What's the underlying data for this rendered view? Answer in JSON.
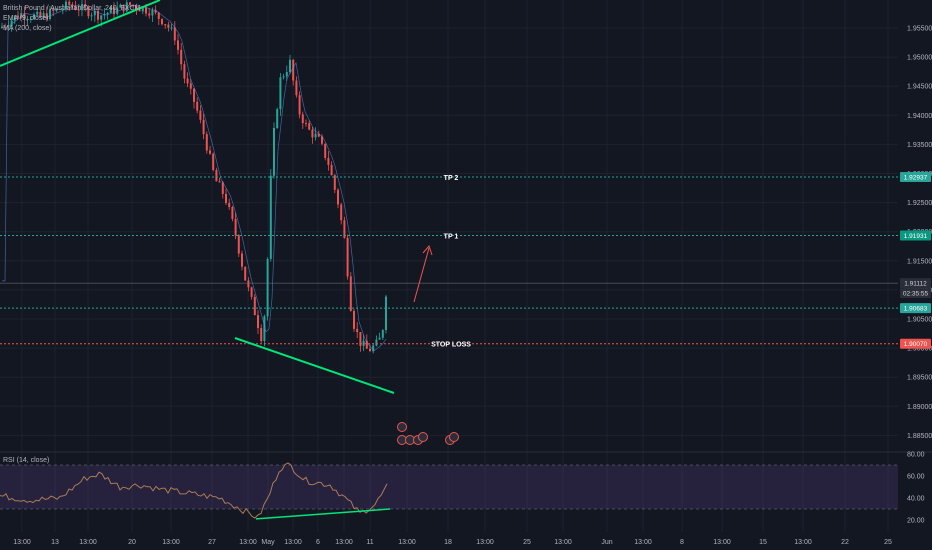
{
  "legend": {
    "symbol": "British Pound / Australian Dollar, 240, FXCM",
    "ema": "EMA (9, close)",
    "ma": "MA (200, close)"
  },
  "rsi_label": "RSI (14, close)",
  "annotations": {
    "tp2": "TP 2",
    "tp1": "TP 1",
    "stop_loss": "STOP LOSS"
  },
  "price_axis": {
    "ticks": [
      "1.95500",
      "1.95000",
      "1.94500",
      "1.94000",
      "1.93500",
      "1.93000",
      "1.92500",
      "1.92000",
      "1.91500",
      "1.91000",
      "1.90500",
      "1.90000",
      "1.89500",
      "1.89000",
      "1.88500"
    ],
    "current_price": "1.91112",
    "countdown": "02:35:55",
    "tp2_value": "1.92937",
    "tp1_value": "1.91931",
    "entry_value": "1.90683",
    "stop_value": "1.90070"
  },
  "rsi_axis": {
    "ticks": [
      "80.00",
      "60.00",
      "40.00",
      "20.00"
    ]
  },
  "time_axis": {
    "ticks": [
      "13:00",
      "13",
      "13:00",
      "20",
      "13:00",
      "27",
      "13:00",
      "May",
      "13:00",
      "6",
      "13:00",
      "11",
      "13:00",
      "18",
      "13:00",
      "25",
      "13:00",
      "Jun",
      "13:00",
      "8",
      "13:00",
      "15",
      "13:00",
      "22",
      "25"
    ]
  },
  "colors": {
    "background": "#131722",
    "grid": "#1e222d",
    "up": "#26a69a",
    "down": "#ef5350",
    "trendline": "#00e676",
    "tp_line": "#26a69a",
    "stop_line": "#ef5350",
    "rsi_band": "#7e57c2",
    "rsi_line": "#ab7b55"
  }
}
